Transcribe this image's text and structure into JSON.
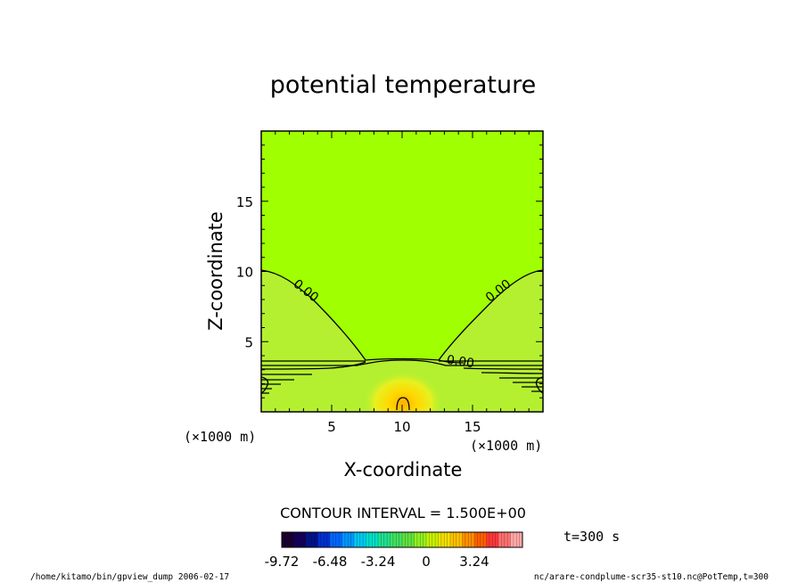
{
  "chart_data": {
    "type": "heatmap",
    "title": "potential temperature",
    "xlabel": "X-coordinate",
    "ylabel": "Z-coordinate",
    "x_scale_note": "(×1000 m)",
    "y_scale_note": "(×1000 m)",
    "xlim": [
      0,
      20
    ],
    "ylim": [
      0,
      20
    ],
    "x_ticks": [
      5,
      10,
      15
    ],
    "y_ticks": [
      5,
      10,
      15
    ],
    "contour_interval_label": "CONTOUR INTERVAL = 1.500E+00",
    "contour_labels": [
      {
        "text": "0.00",
        "x": 3.0,
        "z": 8.4
      },
      {
        "text": "0.00",
        "x": 17.0,
        "z": 8.4
      },
      {
        "text": "0.00",
        "x": 14.1,
        "z": 3.3
      }
    ],
    "warm_anomaly_center": {
      "x": 10,
      "z": 0.6
    },
    "time_label": "t=300 s",
    "colorbar": {
      "min": -9.72,
      "max": 6.48,
      "tick_labels": [
        "-9.72",
        "-6.48",
        "-3.24",
        "0",
        "3.24"
      ],
      "tick_values": [
        -9.72,
        -6.48,
        -3.24,
        0,
        3.24
      ],
      "colors": [
        "#1a0030",
        "#14005a",
        "#001488",
        "#0030d0",
        "#0066ff",
        "#0096ff",
        "#00c8f0",
        "#00e0c8",
        "#20e090",
        "#40e060",
        "#60e040",
        "#90f020",
        "#c8f000",
        "#f0e000",
        "#ffc000",
        "#ff9000",
        "#ff6000",
        "#ff3838",
        "#ff7070",
        "#ffa8a8"
      ]
    },
    "background_color": "#a0ff00",
    "lower_layer_color": "#b4f030"
  },
  "footer": {
    "left": "/home/kitamo/bin/gpview_dump  2006-02-17",
    "right": "nc/arare-condplume-scr35-st10.nc@PotTemp,t=300"
  }
}
